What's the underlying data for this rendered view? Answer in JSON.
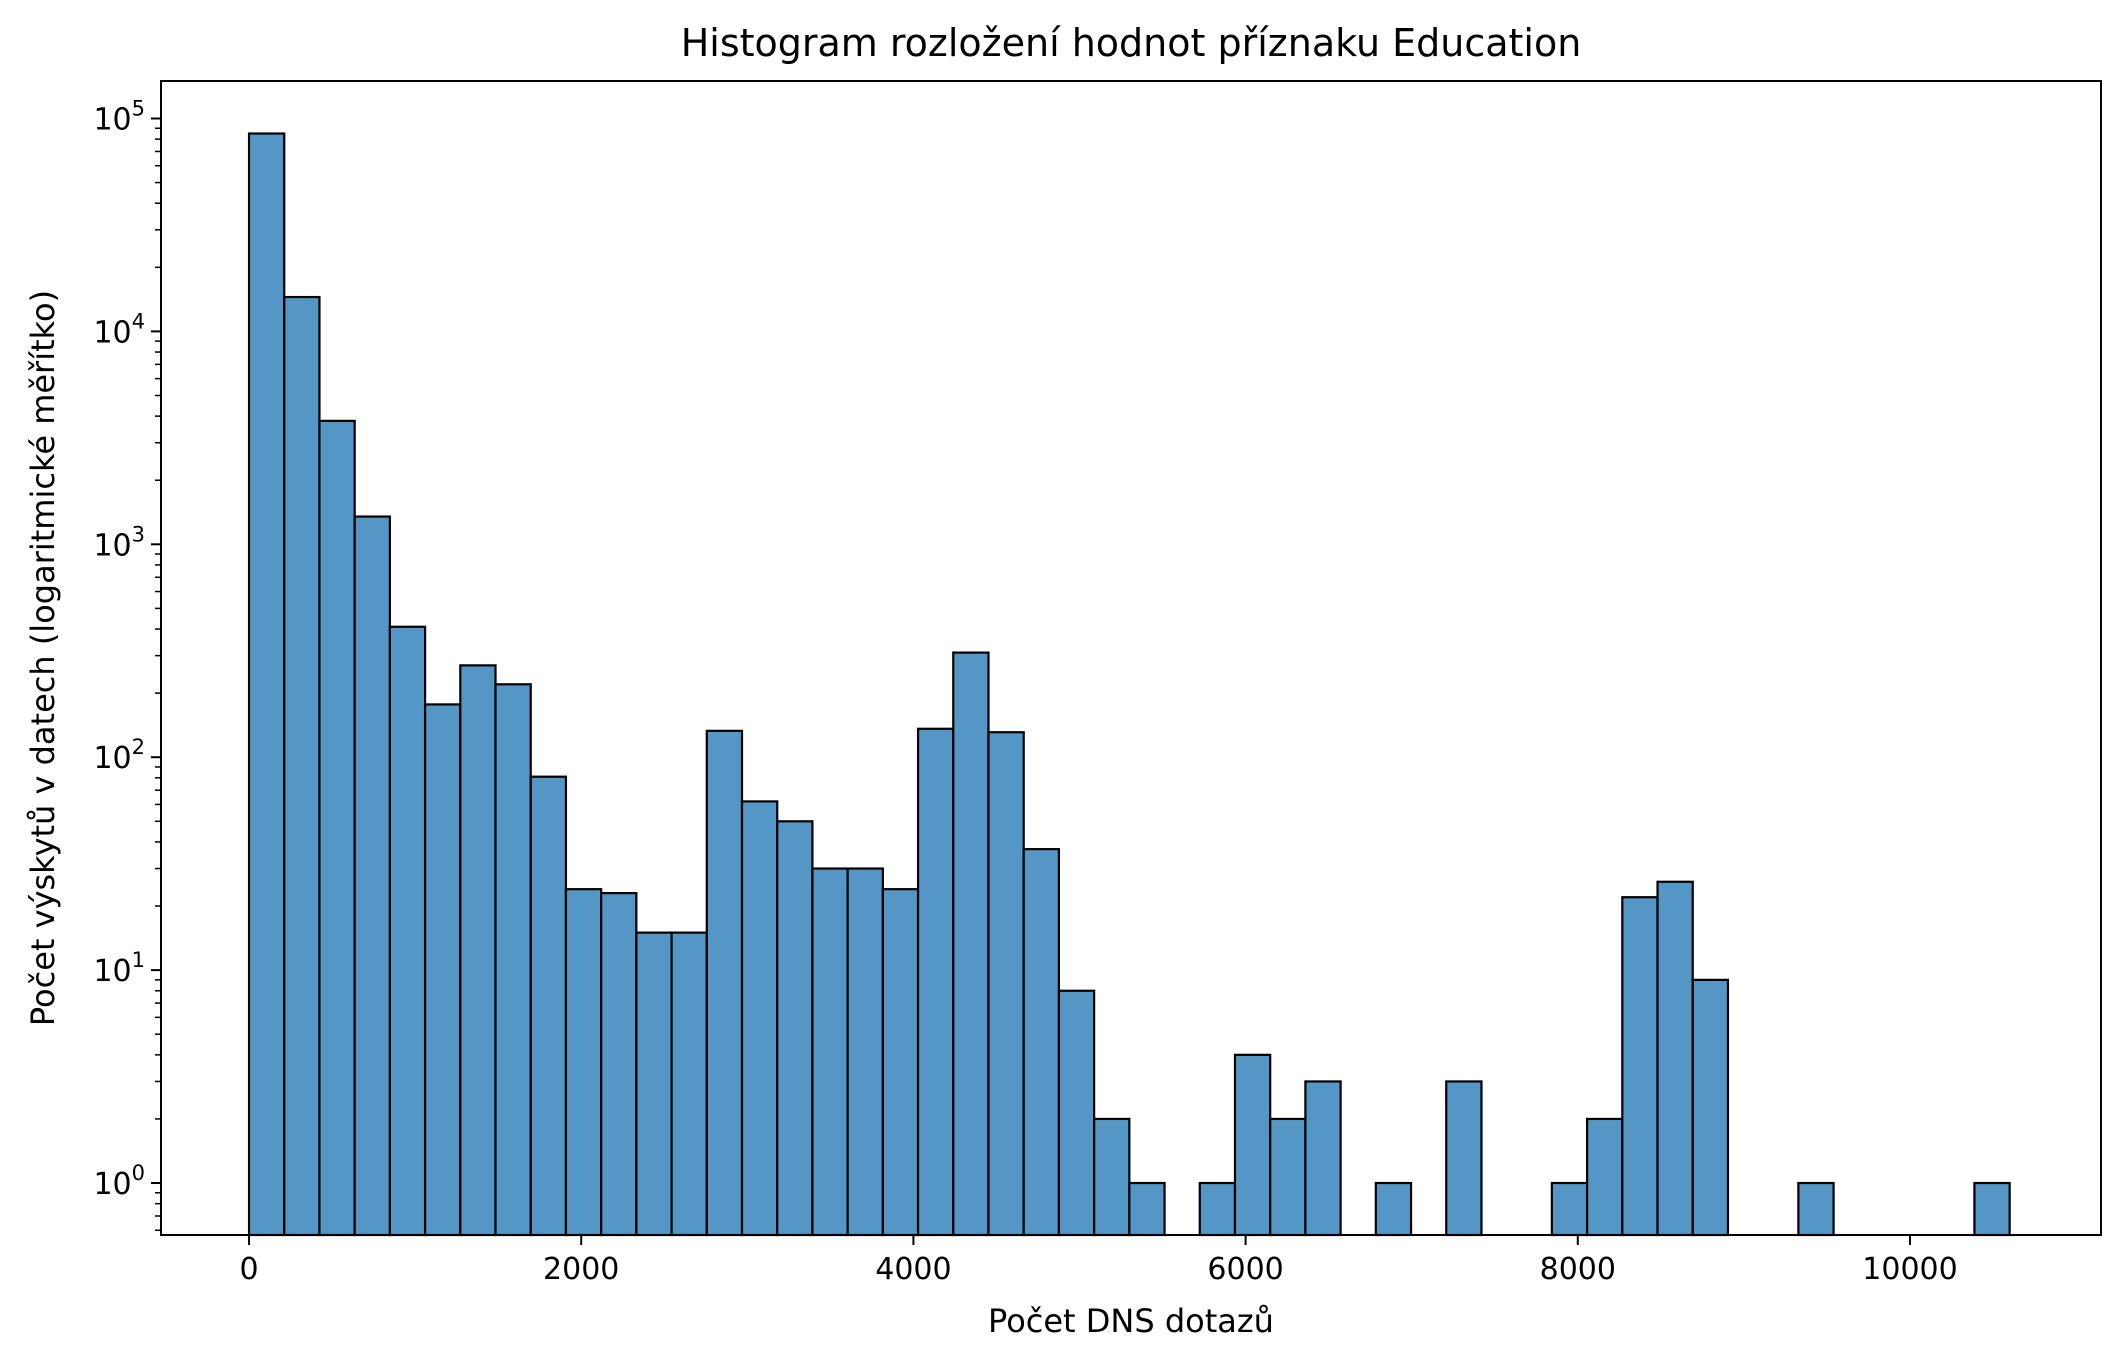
{
  "chart_data": {
    "type": "bar",
    "title": "Histogram rozložení hodnot příznaku Education",
    "xlabel": "Počet DNS dotazů",
    "ylabel": "Počet výskytů v datech (logaritmické měřítko)",
    "x_scale": "linear",
    "y_scale": "log",
    "xlim": [
      -530,
      11150
    ],
    "ylim": [
      0.57,
      150000
    ],
    "grid": false,
    "legend": "none",
    "bar_color": "#5497c6",
    "edge_color": "#000000",
    "x_ticks": [
      0,
      2000,
      4000,
      6000,
      8000,
      10000
    ],
    "x_tick_labels": [
      "0",
      "2000",
      "4000",
      "6000",
      "8000",
      "10000"
    ],
    "y_ticks": [
      1,
      10,
      100,
      1000,
      10000,
      100000
    ],
    "y_tick_labels": [
      {
        "base": "10",
        "exp": "0"
      },
      {
        "base": "10",
        "exp": "1"
      },
      {
        "base": "10",
        "exp": "2"
      },
      {
        "base": "10",
        "exp": "3"
      },
      {
        "base": "10",
        "exp": "4"
      },
      {
        "base": "10",
        "exp": "5"
      }
    ],
    "bin_width": 212,
    "bin_starts": [
      0,
      212,
      424,
      636,
      848,
      1060,
      1272,
      1484,
      1696,
      1908,
      2120,
      2332,
      2544,
      2756,
      2968,
      3180,
      3392,
      3604,
      3816,
      4028,
      4240,
      4452,
      4664,
      4876,
      5088,
      5300,
      5512,
      5724,
      5936,
      6148,
      6360,
      6572,
      6784,
      6996,
      7208,
      7420,
      7632,
      7844,
      8056,
      8268,
      8480,
      8692,
      8904,
      9116,
      9328,
      9540,
      9752,
      9964,
      10176,
      10388
    ],
    "values": [
      85000,
      14500,
      3800,
      1350,
      410,
      177,
      270,
      220,
      81,
      24,
      23,
      15,
      15,
      133,
      62,
      50,
      30,
      30,
      24,
      136,
      310,
      131,
      37,
      8,
      2,
      1,
      0,
      1,
      4,
      2,
      3,
      0,
      1,
      0,
      3,
      0,
      0,
      1,
      2,
      22,
      26,
      9,
      0,
      0,
      1,
      0,
      0,
      0,
      0,
      1
    ]
  }
}
